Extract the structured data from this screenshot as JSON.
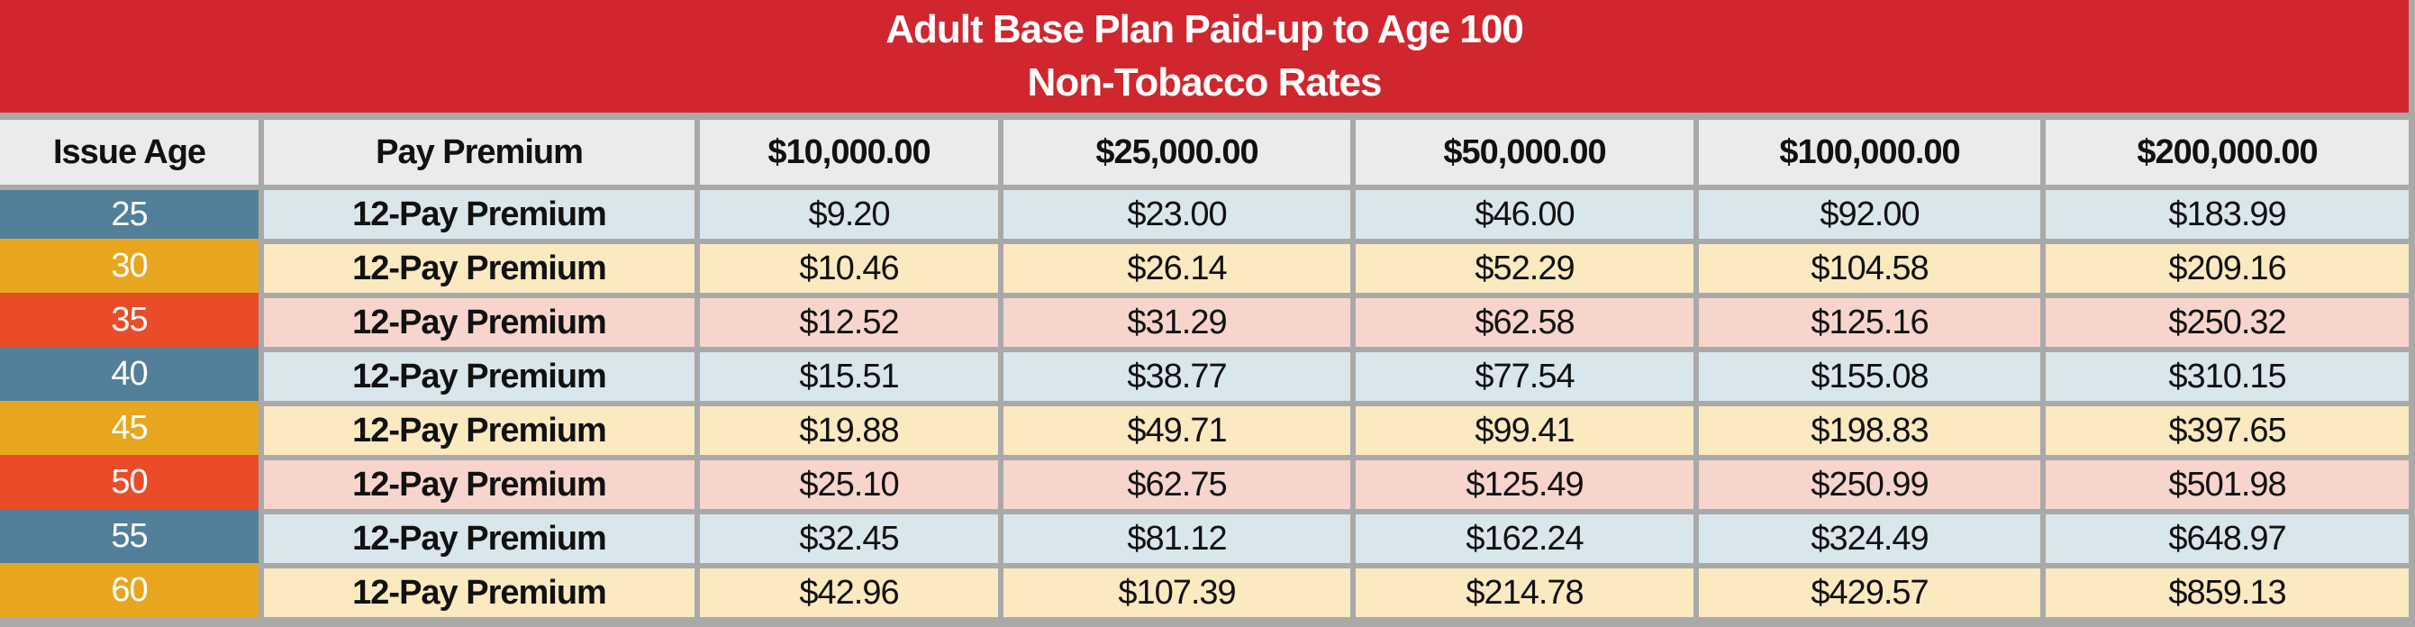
{
  "title": {
    "line1": "Adult Base Plan Paid-up to Age 100",
    "line2": "Non-Tobacco Rates"
  },
  "table": {
    "columns": [
      "Issue Age",
      "Pay Premium",
      "$10,000.00",
      "$25,000.00",
      "$50,000.00",
      "$100,000.00",
      "$200,000.00"
    ],
    "rows": [
      {
        "age": "25",
        "label": "12-Pay Premium",
        "theme": "blue",
        "values": [
          "$9.20",
          "$23.00",
          "$46.00",
          "$92.00",
          "$183.99"
        ]
      },
      {
        "age": "30",
        "label": "12-Pay Premium",
        "theme": "gold",
        "values": [
          "$10.46",
          "$26.14",
          "$52.29",
          "$104.58",
          "$209.16"
        ]
      },
      {
        "age": "35",
        "label": "12-Pay Premium",
        "theme": "red",
        "values": [
          "$12.52",
          "$31.29",
          "$62.58",
          "$125.16",
          "$250.32"
        ]
      },
      {
        "age": "40",
        "label": "12-Pay Premium",
        "theme": "blue",
        "values": [
          "$15.51",
          "$38.77",
          "$77.54",
          "$155.08",
          "$310.15"
        ]
      },
      {
        "age": "45",
        "label": "12-Pay Premium",
        "theme": "gold",
        "values": [
          "$19.88",
          "$49.71",
          "$99.41",
          "$198.83",
          "$397.65"
        ]
      },
      {
        "age": "50",
        "label": "12-Pay Premium",
        "theme": "red",
        "values": [
          "$25.10",
          "$62.75",
          "$125.49",
          "$250.99",
          "$501.98"
        ]
      },
      {
        "age": "55",
        "label": "12-Pay Premium",
        "theme": "blue",
        "values": [
          "$32.45",
          "$81.12",
          "$162.24",
          "$324.49",
          "$648.97"
        ]
      },
      {
        "age": "60",
        "label": "12-Pay Premium",
        "theme": "gold",
        "values": [
          "$42.96",
          "$107.39",
          "$214.78",
          "$429.57",
          "$859.13"
        ]
      }
    ]
  },
  "colors": {
    "banner_red": "#d0262e",
    "grid_gray": "#a9a9a9",
    "header_bg": "#ebebeb",
    "age_blue": "#527f99",
    "age_gold": "#e7a61e",
    "age_red": "#ea4b28",
    "row_blue": "#d9e6ec",
    "row_gold": "#fbe9c0",
    "row_red": "#f7d5cc"
  }
}
